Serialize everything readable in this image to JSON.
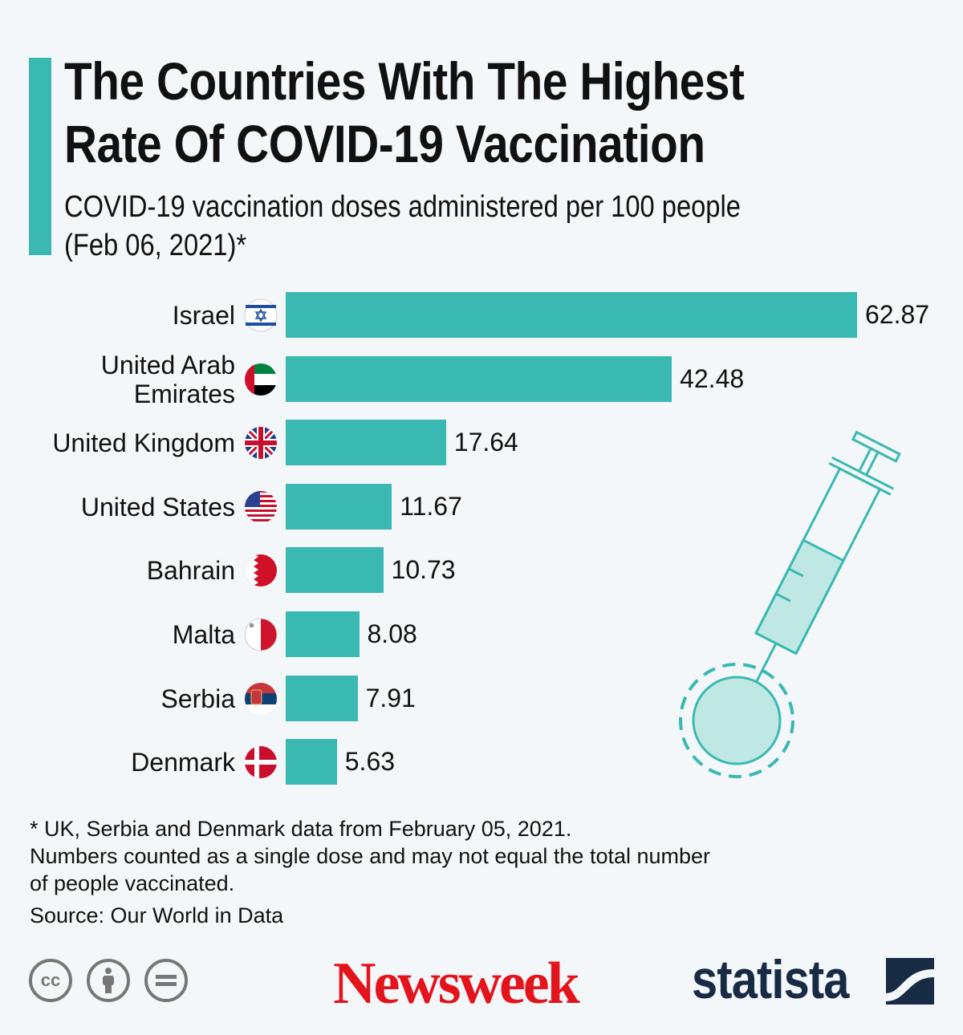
{
  "title": "The Countries With The Highest Rate Of COVID-19 Vaccination",
  "subtitle_line1": "COVID-19 vaccination doses administered per 100 people",
  "subtitle_line2": "(Feb 06, 2021)*",
  "colors": {
    "bar": "#3ab8b2",
    "background": "#f4f7fa",
    "newsweek": "#e3141b",
    "statista": "#172b45"
  },
  "chart_data": {
    "type": "bar",
    "orientation": "horizontal",
    "title": "The Countries With The Highest Rate Of COVID-19 Vaccination",
    "ylabel": "",
    "xlabel": "COVID-19 vaccination doses administered per 100 people",
    "categories": [
      "Israel",
      "United Arab Emirates",
      "United Kingdom",
      "United States",
      "Bahrain",
      "Malta",
      "Serbia",
      "Denmark"
    ],
    "values": [
      62.87,
      42.48,
      17.64,
      11.67,
      10.73,
      8.08,
      7.91,
      5.63
    ],
    "value_labels": [
      "62.87",
      "42.48",
      "17.64",
      "11.67",
      "10.73",
      "8.08",
      "7.91",
      "5.63"
    ],
    "flag_icons": [
      "israel-flag-icon",
      "uae-flag-icon",
      "uk-flag-icon",
      "us-flag-icon",
      "bahrain-flag-icon",
      "malta-flag-icon",
      "serbia-flag-icon",
      "denmark-flag-icon"
    ],
    "xlim": [
      0,
      62.87
    ],
    "grid": false
  },
  "footnote": {
    "line1": "* UK, Serbia and Denmark data from February 05, 2021.",
    "line2": "Numbers counted as a single dose and may not equal the total number",
    "line3": "of people vaccinated.",
    "source": "Source: Our World in Data"
  },
  "logos": {
    "newsweek": "Newsweek",
    "statista": "statista",
    "cc": "cc"
  }
}
